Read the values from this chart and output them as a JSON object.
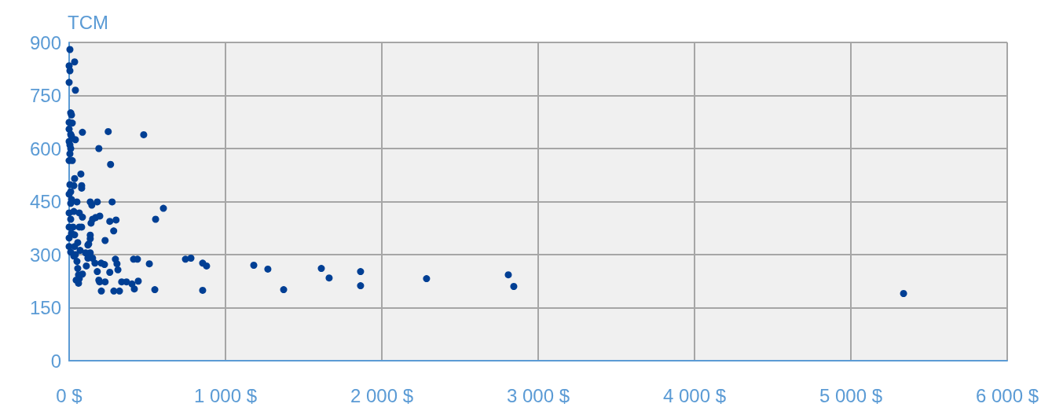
{
  "chart_data": {
    "type": "scatter",
    "ylabel": "TCM",
    "marker": "circle",
    "grid": true,
    "xlim": [
      0,
      6000
    ],
    "ylim": [
      0,
      900
    ],
    "xticks": [
      {
        "value": 0,
        "label": "0 $"
      },
      {
        "value": 1000,
        "label": "1 000 $"
      },
      {
        "value": 2000,
        "label": "2 000 $"
      },
      {
        "value": 3000,
        "label": "3 000 $"
      },
      {
        "value": 4000,
        "label": "4 000 $"
      },
      {
        "value": 5000,
        "label": "5 000 $"
      },
      {
        "value": 6000,
        "label": "6 000 $"
      }
    ],
    "yticks": [
      0,
      150,
      300,
      450,
      600,
      750,
      900
    ],
    "series": [
      {
        "color": "#003f94",
        "x": [
          5,
          35,
          0,
          5,
          0,
          40,
          10,
          15,
          0,
          20,
          0,
          10,
          15,
          40,
          0,
          5,
          10,
          5,
          0,
          20,
          35,
          30,
          5,
          10,
          0,
          15,
          10,
          0,
          30,
          10,
          0,
          25,
          15,
          0,
          35,
          0,
          35,
          10,
          30,
          85,
          50,
          75,
          80,
          80,
          65,
          85,
          65,
          80,
          55,
          70,
          40,
          50,
          55,
          60,
          65,
          45,
          60,
          85,
          110,
          120,
          105,
          125,
          135,
          135,
          140,
          150,
          135,
          145,
          170,
          196,
          190,
          250,
          265,
          180,
          275,
          260,
          285,
          300,
          230,
          120,
          135,
          150,
          165,
          180,
          190,
          195,
          230,
          206,
          226,
          205,
          296,
          306,
          312,
          260,
          336,
          367,
          402,
          417,
          442,
          286,
          322,
          412,
          437,
          477,
          513,
          553,
          603,
          548,
          744,
          779,
          854,
          879,
          854,
          1181,
          1271,
          1372,
          1613,
          1663,
          1864,
          1864,
          2286,
          2809,
          2844,
          5337
        ],
        "values": [
          880,
          845,
          834,
          820,
          787,
          765,
          701,
          695,
          674,
          672,
          655,
          640,
          635,
          625,
          620,
          610,
          600,
          585,
          566,
          566,
          515,
          495,
          498,
          478,
          471,
          456,
          445,
          418,
          422,
          400,
          378,
          378,
          360,
          347,
          356,
          323,
          323,
          307,
          296,
          646,
          449,
          528,
          495,
          488,
          418,
          406,
          378,
          378,
          334,
          312,
          300,
          281,
          261,
          243,
          232,
          228,
          219,
          245,
          268,
          290,
          305,
          330,
          345,
          355,
          389,
          400,
          449,
          440,
          405,
          409,
          600,
          648,
          555,
          449,
          449,
          394,
          367,
          398,
          340,
          327,
          305,
          290,
          276,
          252,
          228,
          223,
          223,
          197,
          272,
          276,
          287,
          274,
          257,
          250,
          223,
          223,
          217,
          203,
          225,
          197,
          197,
          287,
          287,
          639,
          274,
          400,
          431,
          201,
          287,
          290,
          276,
          268,
          199,
          270,
          259,
          201,
          261,
          234,
          252,
          212,
          232,
          243,
          210,
          190
        ]
      }
    ]
  }
}
